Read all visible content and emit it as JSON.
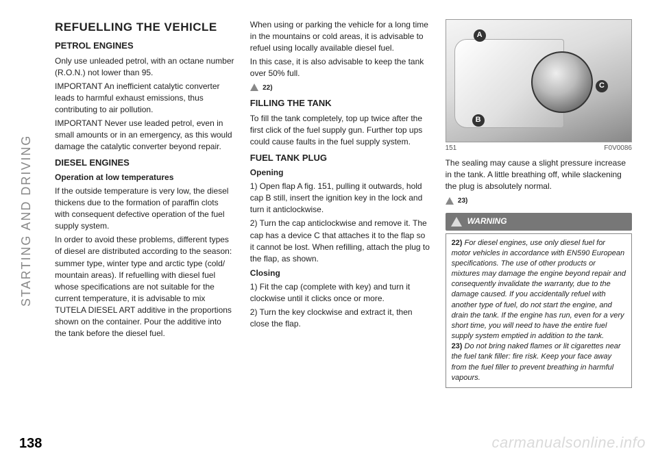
{
  "sideLabel": "STARTING AND DRIVING",
  "pageNumber": "138",
  "watermark": "carmanualsonline.info",
  "col1": {
    "title": "REFUELLING THE VEHICLE",
    "s1h": "PETROL ENGINES",
    "s1p1": "Only use unleaded petrol, with an octane number (R.O.N.) not lower than 95.",
    "s1p2": "IMPORTANT An inefficient catalytic converter leads to harmful exhaust emissions, thus contributing to air pollution.",
    "s1p3": "IMPORTANT Never use leaded petrol, even in small amounts or in an emergency, as this would damage the catalytic converter beyond repair.",
    "s2h": "DIESEL ENGINES",
    "s2b": "Operation at low temperatures",
    "s2p1": "If the outside temperature is very low, the diesel thickens due to the formation of paraffin clots with consequent defective operation of the fuel supply system.",
    "s2p2": "In order to avoid these problems, different types of diesel are distributed according to the season: summer type, winter type and arctic type (cold/ mountain areas). If refuelling with diesel fuel whose specifications are not suitable for the current temperature, it is advisable to mix TUTELA DIESEL ART additive in the proportions shown on the container. Pour the additive into the tank before the diesel fuel."
  },
  "col2": {
    "p1": "When using or parking the vehicle for a long time in the mountains or cold areas, it is advisable to refuel using locally available diesel fuel.",
    "p2": "In this case, it is also advisable to keep the tank over 50% full.",
    "noteRef1": "22)",
    "s1h": "FILLING THE TANK",
    "s1p1": "To fill the tank completely, top up twice after the first click of the fuel supply gun. Further top ups could cause faults in the fuel supply system.",
    "s2h": "FUEL TANK PLUG",
    "s2b1": "Opening",
    "s2p1": "1) Open flap A fig. 151, pulling it outwards, hold cap B still, insert the ignition key in the lock and turn it anticlockwise.",
    "s2p2": "2) Turn the cap anticlockwise and remove it. The cap has a device C that attaches it to the flap so it cannot be lost. When refilling, attach the plug to the flap, as shown.",
    "s2b2": "Closing",
    "s2p3": "1) Fit the cap (complete with key) and turn it clockwise until it clicks once or more.",
    "s2p4": "2) Turn the key clockwise and extract it, then close the flap."
  },
  "col3": {
    "figNum": "151",
    "figCode": "F0V0086",
    "labA": "A",
    "labB": "B",
    "labC": "C",
    "p1": "The sealing may cause a slight pressure increase in the tank. A little breathing off, while slackening the plug is absolutely normal.",
    "noteRef1": "23)",
    "warnHeader": "WARNING",
    "w22n": "22)",
    "w22": " For diesel engines, use only diesel fuel for motor vehicles in accordance with EN590 European specifications. The use of other products or mixtures may damage the engine beyond repair and consequently invalidate the warranty, due to the damage caused. If you accidentally refuel with another type of fuel, do not start the engine, and drain the tank. If the engine has run, even for a very short time, you will need to have the entire fuel supply system emptied in addition to the tank.",
    "w23n": "23)",
    "w23": " Do not bring naked flames or lit cigarettes near the fuel tank filler: fire risk. Keep your face away from the fuel filler to prevent breathing in harmful vapours."
  }
}
